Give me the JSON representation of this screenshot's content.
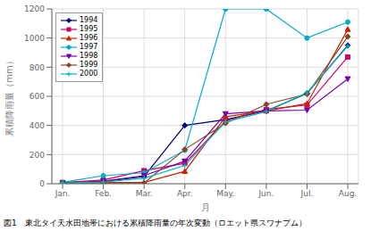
{
  "chart_data": {
    "type": "line",
    "title": "図1　東北タイ天水田地帯における累積降雨量の年次変動（ロエット県スワナプム）",
    "x_label": "月",
    "y_label": "累積降雨量（mm）",
    "categories": [
      "Jan.",
      "Feb.",
      "Mar.",
      "Apr.",
      "May.",
      "Jun.",
      "Jul.",
      "Aug."
    ],
    "ylim": [
      0,
      1200
    ],
    "yticks": [
      0,
      200,
      400,
      600,
      800,
      1000,
      1200
    ],
    "grid": true,
    "legend": "upper left",
    "series": [
      {
        "name": "1994",
        "color": "#000080",
        "marker": "diamond",
        "values": [
          5,
          15,
          50,
          400,
          440,
          500,
          620,
          950
        ]
      },
      {
        "name": "1995",
        "color": "#CC0066",
        "marker": "square",
        "values": [
          8,
          25,
          90,
          140,
          430,
          510,
          540,
          870
        ]
      },
      {
        "name": "1996",
        "color": "#CC2200",
        "marker": "triangle",
        "values": [
          5,
          8,
          8,
          85,
          460,
          500,
          550,
          1060
        ]
      },
      {
        "name": "1997",
        "color": "#00AACC",
        "marker": "circle",
        "values": [
          10,
          55,
          75,
          230,
          1200,
          1200,
          1000,
          1110
        ]
      },
      {
        "name": "1998",
        "color": "#7700AA",
        "marker": "triangle-down",
        "values": [
          5,
          18,
          55,
          155,
          480,
          500,
          505,
          720
        ]
      },
      {
        "name": "1999",
        "color": "#884422",
        "marker": "diamond",
        "values": [
          5,
          5,
          5,
          235,
          415,
          545,
          615,
          1010
        ]
      },
      {
        "name": "2000",
        "color": "#00BBBB",
        "marker": "plus",
        "values": [
          5,
          12,
          38,
          125,
          425,
          495,
          625,
          945
        ]
      }
    ]
  }
}
